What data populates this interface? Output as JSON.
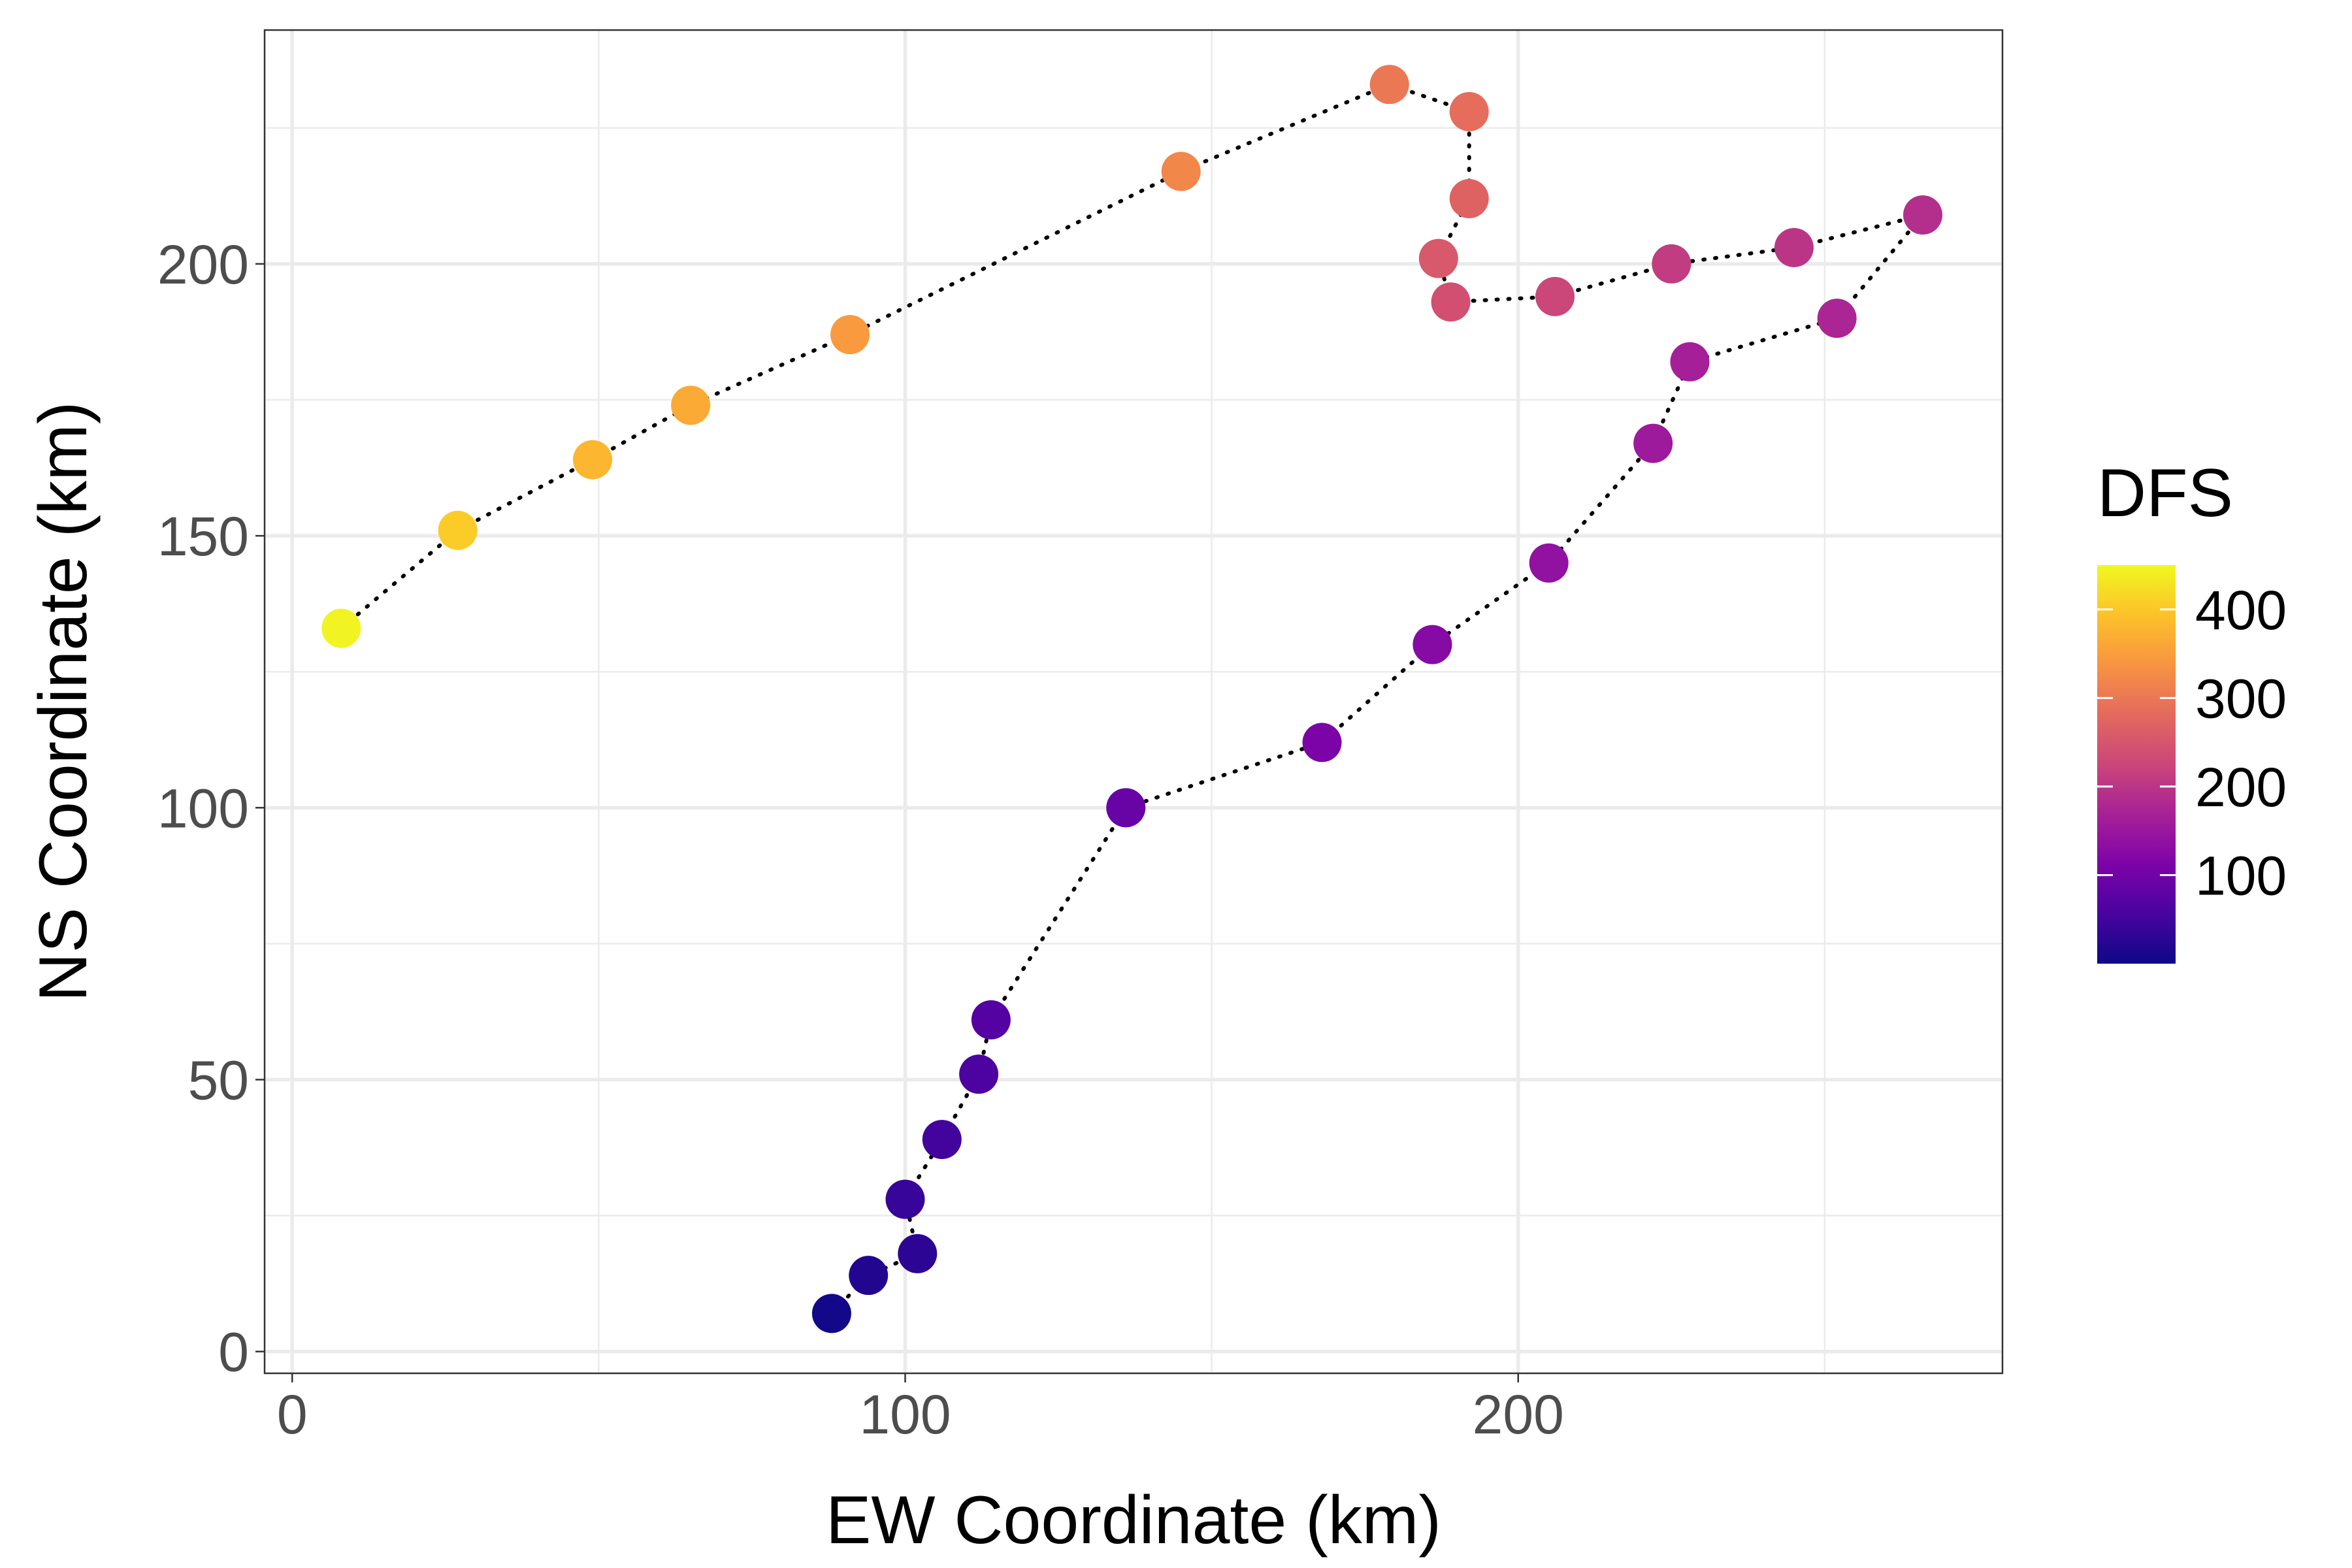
{
  "chart_data": {
    "type": "scatter",
    "xlabel": "EW Coordinate (km)",
    "ylabel": "NS Coordinate (km)",
    "xlim": [
      -4.5,
      279
    ],
    "ylim": [
      -4,
      243
    ],
    "x_ticks": [
      0,
      100,
      200
    ],
    "y_ticks": [
      0,
      50,
      100,
      150,
      200
    ],
    "grid": true,
    "connect_points": "dotted",
    "colorbar": {
      "title": "DFS",
      "ticks": [
        100,
        200,
        300,
        400
      ],
      "range": [
        0,
        450
      ],
      "palette": "plasma",
      "placement": "right"
    },
    "points": [
      {
        "x": 88,
        "y": 7,
        "dfs": 5
      },
      {
        "x": 94,
        "y": 14,
        "dfs": 20
      },
      {
        "x": 102,
        "y": 18,
        "dfs": 30
      },
      {
        "x": 100,
        "y": 28,
        "dfs": 40
      },
      {
        "x": 106,
        "y": 39,
        "dfs": 50
      },
      {
        "x": 112,
        "y": 51,
        "dfs": 60
      },
      {
        "x": 114,
        "y": 61,
        "dfs": 68
      },
      {
        "x": 136,
        "y": 100,
        "dfs": 90
      },
      {
        "x": 168,
        "y": 112,
        "dfs": 110
      },
      {
        "x": 186,
        "y": 130,
        "dfs": 125
      },
      {
        "x": 205,
        "y": 145,
        "dfs": 140
      },
      {
        "x": 222,
        "y": 167,
        "dfs": 155
      },
      {
        "x": 228,
        "y": 182,
        "dfs": 165
      },
      {
        "x": 252,
        "y": 190,
        "dfs": 175
      },
      {
        "x": 266,
        "y": 209,
        "dfs": 190
      },
      {
        "x": 245,
        "y": 203,
        "dfs": 200
      },
      {
        "x": 225,
        "y": 200,
        "dfs": 210
      },
      {
        "x": 206,
        "y": 194,
        "dfs": 225
      },
      {
        "x": 189,
        "y": 193,
        "dfs": 240
      },
      {
        "x": 187,
        "y": 201,
        "dfs": 255
      },
      {
        "x": 192,
        "y": 212,
        "dfs": 270
      },
      {
        "x": 192,
        "y": 228,
        "dfs": 285
      },
      {
        "x": 179,
        "y": 233,
        "dfs": 300
      },
      {
        "x": 145,
        "y": 217,
        "dfs": 320
      },
      {
        "x": 91,
        "y": 187,
        "dfs": 345
      },
      {
        "x": 65,
        "y": 174,
        "dfs": 365
      },
      {
        "x": 49,
        "y": 164,
        "dfs": 380
      },
      {
        "x": 27,
        "y": 151,
        "dfs": 405
      },
      {
        "x": 8,
        "y": 133,
        "dfs": 445
      }
    ]
  }
}
